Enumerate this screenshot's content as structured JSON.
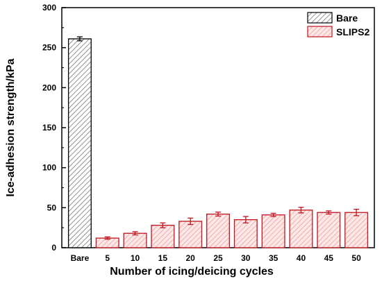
{
  "chart_data": {
    "type": "bar",
    "xlabel": "Number of icing/deicing cycles",
    "ylabel": "Ice-adhesion strength/kPa",
    "ylim": [
      0,
      300
    ],
    "yticks": [
      "0",
      "50",
      "100",
      "150",
      "200",
      "250",
      "300"
    ],
    "categories": [
      "Bare",
      "5",
      "10",
      "15",
      "20",
      "25",
      "30",
      "35",
      "40",
      "45",
      "50"
    ],
    "series": [
      {
        "name": "Bare",
        "color": "#555555",
        "fill_pattern": "hatch-gray",
        "points": [
          {
            "category": "Bare",
            "value": 261,
            "error": 2.5
          }
        ]
      },
      {
        "name": "SLIPS2",
        "color": "#c0141e",
        "fill_pattern": "hatch-red",
        "points": [
          {
            "category": "5",
            "value": 12,
            "error": 1.5
          },
          {
            "category": "10",
            "value": 18,
            "error": 2.0
          },
          {
            "category": "15",
            "value": 28,
            "error": 3.0
          },
          {
            "category": "20",
            "value": 33,
            "error": 4.0
          },
          {
            "category": "25",
            "value": 42,
            "error": 2.5
          },
          {
            "category": "30",
            "value": 35,
            "error": 4.0
          },
          {
            "category": "35",
            "value": 41,
            "error": 2.0
          },
          {
            "category": "40",
            "value": 47,
            "error": 3.5
          },
          {
            "category": "45",
            "value": 44,
            "error": 2.0
          },
          {
            "category": "50",
            "value": 44,
            "error": 4.0
          }
        ]
      }
    ],
    "legend": {
      "position": "top-right",
      "entries": [
        "Bare",
        "SLIPS2"
      ]
    },
    "grid": false
  }
}
